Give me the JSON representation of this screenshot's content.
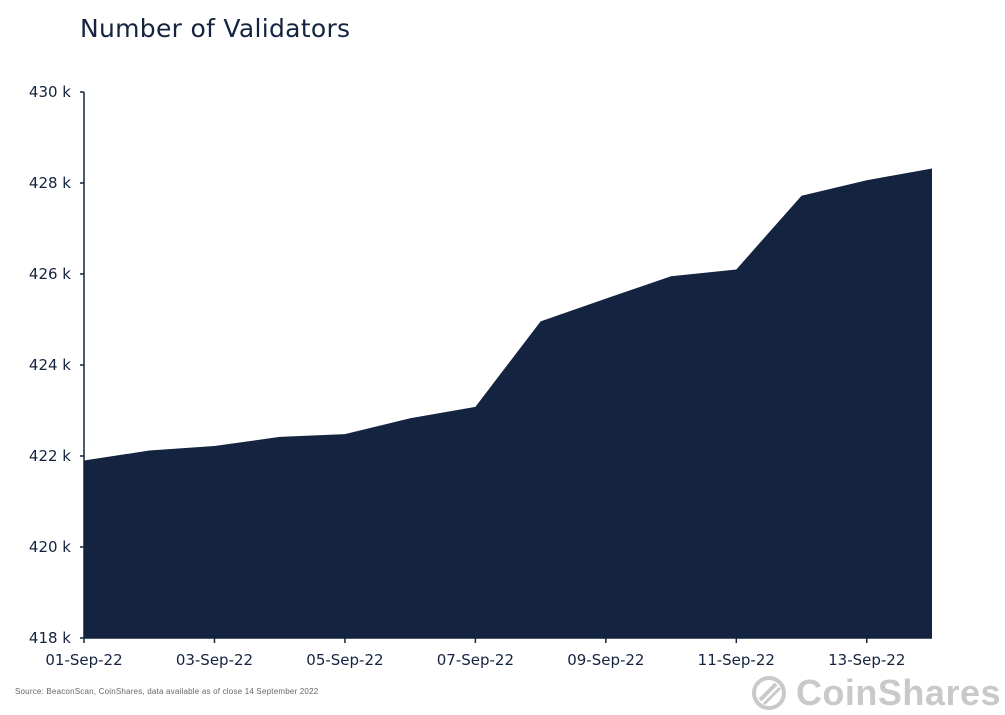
{
  "title": "Number of Validators",
  "source_note": "Source: BeaconScan, CoinShares,  data available as of close 14 September 2022",
  "brand": {
    "name": "CoinShares",
    "icon": "coinshares-logo-icon"
  },
  "colors": {
    "area_fill": "#14233f",
    "text": "#14233f",
    "brand_gray": "#c9c9c9"
  },
  "chart_data": {
    "type": "area",
    "title": "Number of Validators",
    "x": [
      "01-Sep-22",
      "02-Sep-22",
      "03-Sep-22",
      "04-Sep-22",
      "05-Sep-22",
      "06-Sep-22",
      "07-Sep-22",
      "08-Sep-22",
      "09-Sep-22",
      "10-Sep-22",
      "11-Sep-22",
      "12-Sep-22",
      "13-Sep-22",
      "14-Sep-22"
    ],
    "series": [
      {
        "values": [
          421900,
          422120,
          422220,
          422420,
          422480,
          422830,
          423080,
          424960,
          425460,
          425950,
          426100,
          427720,
          428060,
          428320
        ]
      }
    ],
    "x_tick_labels": [
      "01-Sep-22",
      "03-Sep-22",
      "05-Sep-22",
      "07-Sep-22",
      "09-Sep-22",
      "11-Sep-22",
      "13-Sep-22"
    ],
    "y_ticks": [
      418000,
      420000,
      422000,
      424000,
      426000,
      428000,
      430000
    ],
    "y_tick_labels": [
      "418 k",
      "420 k",
      "422 k",
      "424 k",
      "426 k",
      "428 k",
      "430 k"
    ],
    "ylim": [
      418000,
      430000
    ],
    "grid": false,
    "legend": "none"
  }
}
